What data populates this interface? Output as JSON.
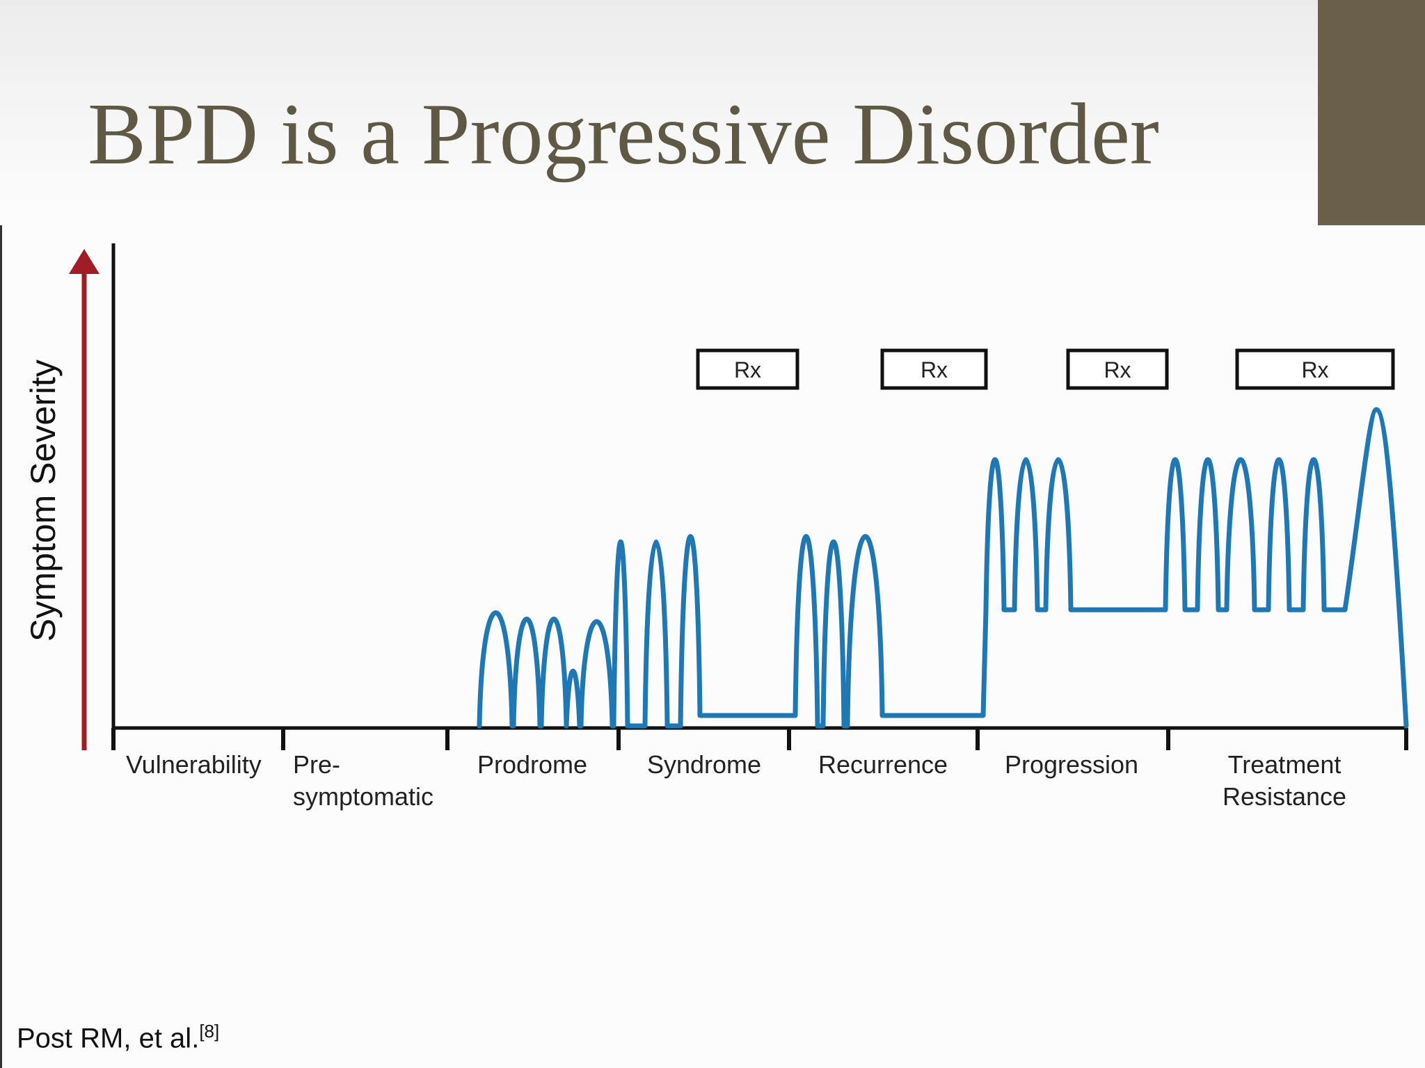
{
  "slide": {
    "title": "BPD is a Progressive Disorder",
    "accent_color": "#6b604a",
    "title_color": "#5f5844"
  },
  "diagram": {
    "y_axis_label": "Symptom Severity",
    "arrow_color": "#a01c26",
    "line_color": "#1f78b4",
    "phases": [
      {
        "id": "vulnerability",
        "lines": [
          "Vulnerability"
        ]
      },
      {
        "id": "presymptomatic",
        "lines": [
          "Pre-",
          "symptomatic"
        ]
      },
      {
        "id": "prodrome",
        "lines": [
          "Prodrome"
        ]
      },
      {
        "id": "syndrome",
        "lines": [
          "Syndrome"
        ]
      },
      {
        "id": "recurrence",
        "lines": [
          "Recurrence"
        ]
      },
      {
        "id": "progression",
        "lines": [
          "Progression"
        ]
      },
      {
        "id": "treatment-resistance",
        "lines": [
          "Treatment",
          "Resistance"
        ]
      }
    ],
    "treatment_boxes": [
      {
        "phase": "syndrome",
        "label": "Rx"
      },
      {
        "phase": "recurrence",
        "label": "Rx"
      },
      {
        "phase": "progression",
        "label": "Rx"
      },
      {
        "phase": "treatment-resistance",
        "label": "Rx"
      }
    ]
  },
  "citation": {
    "text": "Post RM, et al.",
    "reference": "[8]"
  }
}
